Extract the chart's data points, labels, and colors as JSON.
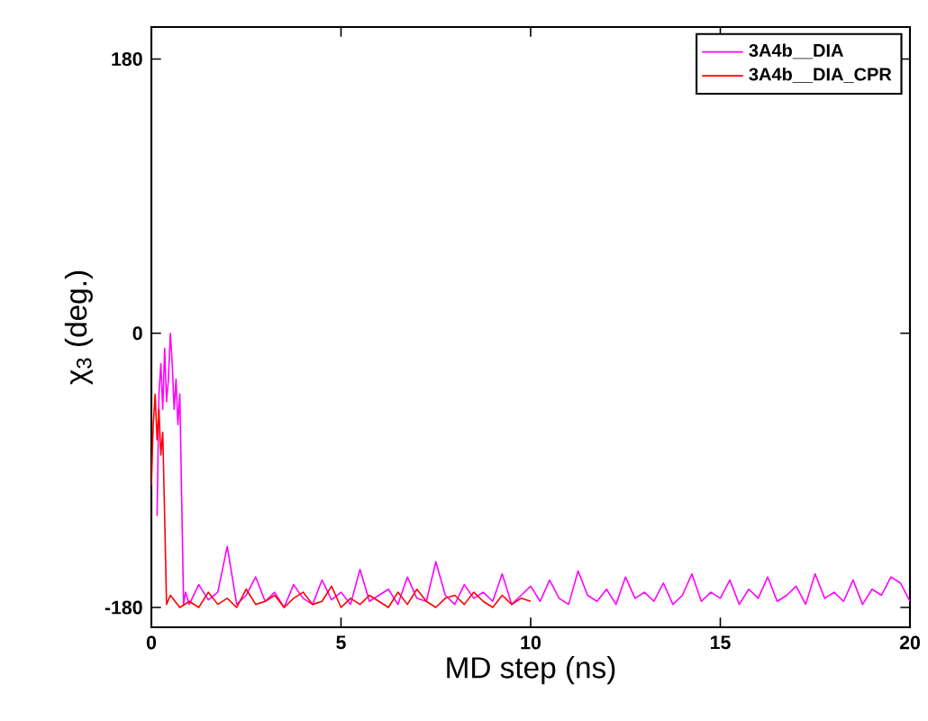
{
  "chart_data": {
    "type": "line",
    "xlabel": "MD step (ns)",
    "ylabel": "χ$_{3}$ (deg.)",
    "xlim": [
      0,
      20
    ],
    "ylim": [
      -193,
      201
    ],
    "xticks": [
      0,
      5,
      10,
      15,
      20
    ],
    "yticks": [
      -180,
      0,
      180
    ],
    "legend": "top right",
    "grid": false,
    "marker": "none",
    "line_style": "solid",
    "series": [
      {
        "name": "3A4b__DIA",
        "color": "#ff00ff",
        "x": [
          0.15,
          0.2,
          0.25,
          0.3,
          0.35,
          0.4,
          0.45,
          0.5,
          0.55,
          0.6,
          0.65,
          0.7,
          0.75,
          0.8,
          0.85,
          0.9,
          1.0,
          1.25,
          1.5,
          1.75,
          2.0,
          2.25,
          2.5,
          2.75,
          3.0,
          3.25,
          3.5,
          3.75,
          4.0,
          4.25,
          4.5,
          4.75,
          5.0,
          5.25,
          5.5,
          5.75,
          6.0,
          6.25,
          6.5,
          6.75,
          7.0,
          7.25,
          7.5,
          7.75,
          8.0,
          8.25,
          8.5,
          8.75,
          9.0,
          9.25,
          9.5,
          9.75,
          10.0,
          10.25,
          10.5,
          10.75,
          11.0,
          11.25,
          11.5,
          11.75,
          12.0,
          12.25,
          12.5,
          12.75,
          13.0,
          13.25,
          13.5,
          13.75,
          14.0,
          14.25,
          14.5,
          14.75,
          15.0,
          15.25,
          15.5,
          15.75,
          16.0,
          16.25,
          16.5,
          16.75,
          17.0,
          17.25,
          17.5,
          17.75,
          18.0,
          18.25,
          18.5,
          18.75,
          19.0,
          19.25,
          19.5,
          19.75,
          20.0
        ],
        "values": [
          -120,
          -40,
          -20,
          -50,
          -10,
          -45,
          -30,
          0,
          -20,
          -50,
          -30,
          -60,
          -40,
          -110,
          -178,
          -170,
          -178,
          -165,
          -175,
          -170,
          -140,
          -178,
          -172,
          -160,
          -176,
          -170,
          -180,
          -165,
          -174,
          -178,
          -162,
          -175,
          -170,
          -178,
          -155,
          -176,
          -172,
          -168,
          -178,
          -160,
          -174,
          -176,
          -150,
          -172,
          -178,
          -165,
          -174,
          -170,
          -176,
          -158,
          -178,
          -172,
          -166,
          -176,
          -162,
          -174,
          -178,
          -156,
          -172,
          -176,
          -168,
          -178,
          -160,
          -174,
          -170,
          -176,
          -164,
          -178,
          -172,
          -158,
          -176,
          -170,
          -174,
          -162,
          -178,
          -168,
          -174,
          -160,
          -176,
          -172,
          -166,
          -178,
          -158,
          -174,
          -170,
          -176,
          -162,
          -178,
          -168,
          -172,
          -160,
          -164,
          -176
        ]
      },
      {
        "name": "3A4b__DIA_CPR",
        "color": "#ff0000",
        "x": [
          0,
          0.05,
          0.1,
          0.15,
          0.2,
          0.25,
          0.3,
          0.35,
          0.4,
          0.5,
          0.75,
          1.0,
          1.25,
          1.5,
          1.75,
          2.0,
          2.25,
          2.5,
          2.75,
          3.0,
          3.25,
          3.5,
          3.75,
          4.0,
          4.25,
          4.5,
          4.75,
          5.0,
          5.25,
          5.5,
          5.75,
          6.0,
          6.25,
          6.5,
          6.75,
          7.0,
          7.25,
          7.5,
          7.75,
          8.0,
          8.25,
          8.5,
          8.75,
          9.0,
          9.25,
          9.5,
          9.75,
          10.0
        ],
        "values": [
          -100,
          -60,
          -40,
          -70,
          -50,
          -80,
          -65,
          -120,
          -178,
          -172,
          -180,
          -176,
          -180,
          -170,
          -178,
          -174,
          -180,
          -168,
          -178,
          -176,
          -172,
          -180,
          -174,
          -170,
          -178,
          -176,
          -166,
          -180,
          -174,
          -178,
          -172,
          -176,
          -180,
          -170,
          -178,
          -168,
          -176,
          -180,
          -174,
          -172,
          -178,
          -170,
          -176,
          -180,
          -172,
          -178,
          -174,
          -176
        ]
      }
    ]
  }
}
